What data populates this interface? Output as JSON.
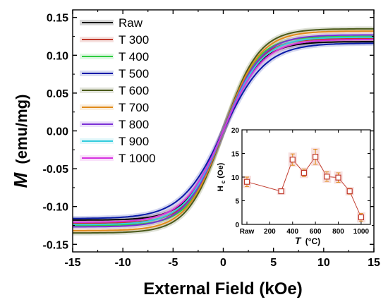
{
  "chart_data": [
    {
      "type": "line",
      "xlabel": "External Field (kOe)",
      "ylabel_main": "M",
      "ylabel_unit": "(emu/mg)",
      "xlim": [
        -15,
        15
      ],
      "ylim": [
        -0.16,
        0.16
      ],
      "xticks": [
        "-15",
        "-10",
        "-5",
        "0",
        "5",
        "10",
        "15"
      ],
      "yticks": [
        "-0.15",
        "-0.10",
        "-0.05",
        "0.00",
        "0.05",
        "0.10",
        "0.15"
      ],
      "grid": false,
      "legend_position": "top-left",
      "series": [
        {
          "name": "Raw",
          "color": "#000000",
          "Ms": 0.118,
          "H0": 3.6,
          "x": [
            -15,
            -10,
            -7.5,
            -5,
            -2.5,
            0,
            2.5,
            5,
            7.5,
            10,
            15
          ],
          "y": [
            -0.117,
            -0.111,
            -0.1,
            -0.079,
            -0.045,
            0.0,
            0.045,
            0.079,
            0.1,
            0.111,
            0.117
          ]
        },
        {
          "name": "T 300",
          "color": "#c0392b",
          "Ms": 0.122,
          "H0": 3.5,
          "x": [
            -15,
            -10,
            -7.5,
            -5,
            -2.5,
            0,
            2.5,
            5,
            7.5,
            10,
            15
          ],
          "y": [
            -0.121,
            -0.115,
            -0.104,
            -0.082,
            -0.047,
            0.0,
            0.047,
            0.082,
            0.104,
            0.115,
            0.121
          ]
        },
        {
          "name": "T 400",
          "color": "#2ecc40",
          "Ms": 0.125,
          "H0": 3.4,
          "x": [
            -15,
            -10,
            -7.5,
            -5,
            -2.5,
            0,
            2.5,
            5,
            7.5,
            10,
            15
          ],
          "y": [
            -0.124,
            -0.118,
            -0.107,
            -0.085,
            -0.049,
            0.0,
            0.049,
            0.085,
            0.107,
            0.118,
            0.124
          ]
        },
        {
          "name": "T 500",
          "color": "#0a1aa8",
          "Ms": 0.116,
          "H0": 4.2,
          "x": [
            -15,
            -10,
            -7.5,
            -5,
            -2.5,
            0,
            2.5,
            5,
            7.5,
            10,
            15
          ],
          "y": [
            -0.114,
            -0.107,
            -0.094,
            -0.071,
            -0.039,
            0.0,
            0.039,
            0.071,
            0.094,
            0.107,
            0.114
          ]
        },
        {
          "name": "T 600",
          "color": "#4a5a1a",
          "Ms": 0.135,
          "H0": 3.5,
          "x": [
            -15,
            -10,
            -7.5,
            -5,
            -2.5,
            0,
            2.5,
            5,
            7.5,
            10,
            15
          ],
          "y": [
            -0.134,
            -0.127,
            -0.115,
            -0.091,
            -0.052,
            0.0,
            0.052,
            0.091,
            0.115,
            0.127,
            0.134
          ]
        },
        {
          "name": "T 700",
          "color": "#e08a1a",
          "Ms": 0.132,
          "H0": 3.6,
          "x": [
            -15,
            -10,
            -7.5,
            -5,
            -2.5,
            0,
            2.5,
            5,
            7.5,
            10,
            15
          ],
          "y": [
            -0.131,
            -0.124,
            -0.112,
            -0.088,
            -0.05,
            0.0,
            0.05,
            0.088,
            0.112,
            0.124,
            0.131
          ]
        },
        {
          "name": "T 800",
          "color": "#7b2fd6",
          "Ms": 0.127,
          "H0": 3.7,
          "x": [
            -15,
            -10,
            -7.5,
            -5,
            -2.5,
            0,
            2.5,
            5,
            7.5,
            10,
            15
          ],
          "y": [
            -0.126,
            -0.119,
            -0.107,
            -0.084,
            -0.048,
            0.0,
            0.048,
            0.084,
            0.107,
            0.119,
            0.126
          ]
        },
        {
          "name": "T 900",
          "color": "#33ccdd",
          "Ms": 0.124,
          "H0": 3.8,
          "x": [
            -15,
            -10,
            -7.5,
            -5,
            -2.5,
            0,
            2.5,
            5,
            7.5,
            10,
            15
          ],
          "y": [
            -0.123,
            -0.116,
            -0.104,
            -0.081,
            -0.046,
            0.0,
            0.046,
            0.081,
            0.104,
            0.116,
            0.123
          ]
        },
        {
          "name": "T 1000",
          "color": "#d633e0",
          "Ms": 0.121,
          "H0": 3.9,
          "x": [
            -15,
            -10,
            -7.5,
            -5,
            -2.5,
            0,
            2.5,
            5,
            7.5,
            10,
            15
          ],
          "y": [
            -0.119,
            -0.112,
            -0.1,
            -0.078,
            -0.044,
            0.0,
            0.044,
            0.078,
            0.1,
            0.112,
            0.119
          ]
        }
      ]
    },
    {
      "type": "line",
      "ylabel": "Hc (Oe)",
      "xlabel_main": "T",
      "xlabel_unit": "(°C)",
      "ylim": [
        0,
        20
      ],
      "xlim": [
        0,
        1050
      ],
      "xticks": [
        "Raw",
        "200",
        "400",
        "600",
        "800",
        "1000"
      ],
      "yticks": [
        "0",
        "5",
        "10",
        "15",
        "20"
      ],
      "color": "#c0392b",
      "points": [
        {
          "label": "Raw",
          "x": 0,
          "y": 9.0,
          "err": 1.0
        },
        {
          "label": "300",
          "x": 300,
          "y": 7.0,
          "err": 0.4
        },
        {
          "label": "400",
          "x": 400,
          "y": 13.7,
          "err": 1.2
        },
        {
          "label": "500",
          "x": 500,
          "y": 10.9,
          "err": 0.8
        },
        {
          "label": "600",
          "x": 600,
          "y": 14.3,
          "err": 1.6
        },
        {
          "label": "700",
          "x": 700,
          "y": 10.1,
          "err": 1.0
        },
        {
          "label": "800",
          "x": 800,
          "y": 9.9,
          "err": 1.0
        },
        {
          "label": "900",
          "x": 900,
          "y": 7.0,
          "err": 0.6
        },
        {
          "label": "1000",
          "x": 1000,
          "y": 1.5,
          "err": 0.8
        }
      ]
    }
  ]
}
